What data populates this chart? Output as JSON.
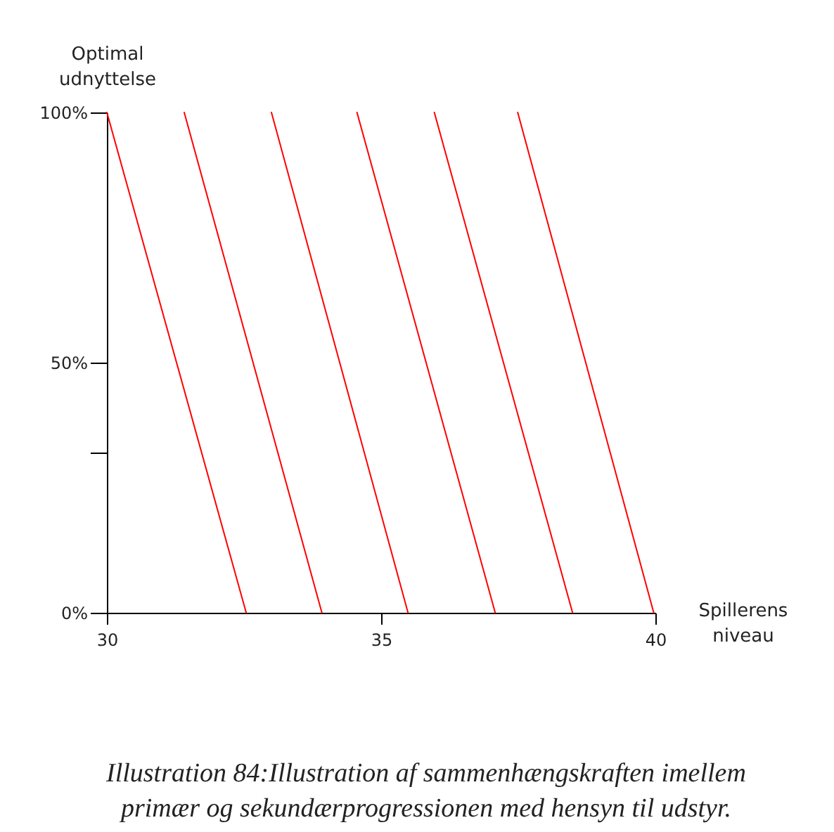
{
  "chart_data": {
    "type": "line",
    "xlabel": "Spillerens niveau",
    "ylabel": "Optimal udnyttelse",
    "annotations": [
      "Illustration 84:Illustration af sammenhængskraften imellem primær og sekundærprogressionen med hensyn til udstyr."
    ],
    "xlim": [
      30,
      40
    ],
    "xticks": [
      30,
      35,
      40
    ],
    "ylim": [
      0,
      100
    ],
    "yticks": [
      {
        "value": 0,
        "label": "0%"
      },
      {
        "value": 32,
        "label": null
      },
      {
        "value": 50,
        "label": "50%"
      },
      {
        "value": 100,
        "label": "100%"
      }
    ],
    "grid": false,
    "legend": false,
    "marker": "none",
    "line_style": "solid",
    "series": [
      {
        "color": "#ff0000",
        "x": [
          30,
          32.54
        ],
        "values": [
          100,
          0
        ]
      },
      {
        "color": "#ff0000",
        "x": [
          31.41,
          33.92
        ],
        "values": [
          100,
          0
        ]
      },
      {
        "color": "#ff0000",
        "x": [
          33.0,
          35.49
        ],
        "values": [
          100,
          0
        ]
      },
      {
        "color": "#ff0000",
        "x": [
          34.56,
          37.08
        ],
        "values": [
          100,
          0
        ]
      },
      {
        "color": "#ff0000",
        "x": [
          35.97,
          38.49
        ],
        "values": [
          100,
          0
        ]
      },
      {
        "color": "#ff0000",
        "x": [
          37.49,
          39.97
        ],
        "values": [
          100,
          0
        ]
      }
    ]
  }
}
